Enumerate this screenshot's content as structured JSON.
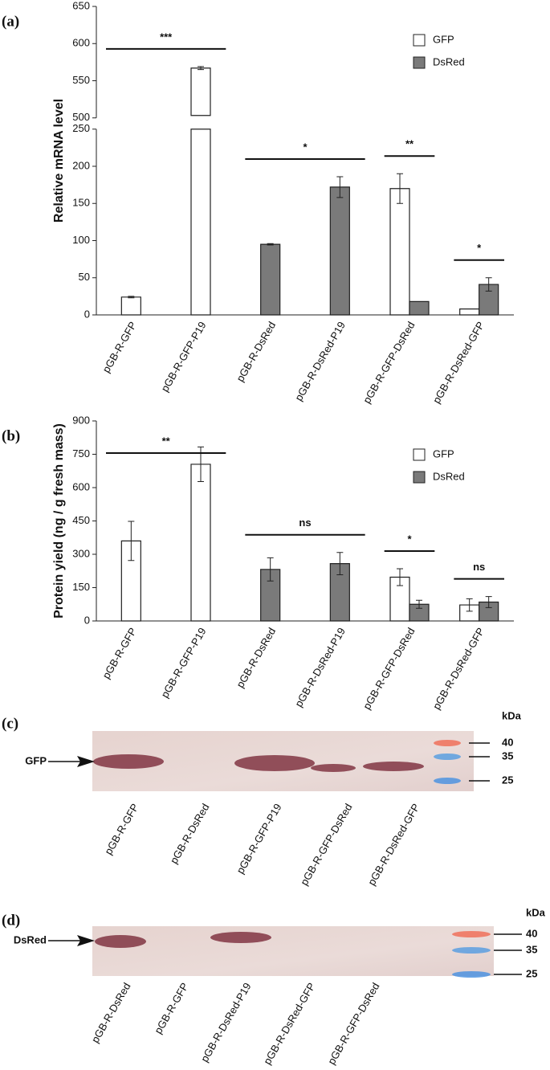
{
  "chart_data": [
    {
      "type": "bar",
      "panel_label": "(a)",
      "y_label": "Relative mRNA level",
      "categories": [
        "pGB-R-GFP",
        "pGB-R-GFP-P19",
        "pGB-R-DsRed",
        "pGB-R-DsRed-P19",
        "pGB-R-GFP-DsRed",
        "pGB-R-DsRed-GFP"
      ],
      "series": [
        {
          "name": "GFP",
          "color": "#ffffff",
          "values": [
            24,
            567,
            null,
            null,
            170,
            8
          ],
          "errors": [
            1,
            2,
            null,
            null,
            20,
            null
          ]
        },
        {
          "name": "DsRed",
          "color": "#7a7a7a",
          "values": [
            null,
            null,
            95,
            172,
            18,
            41
          ],
          "errors": [
            null,
            null,
            1,
            14,
            null,
            9
          ]
        }
      ],
      "ylim": [
        0,
        650
      ],
      "axis_break": [
        250,
        500
      ],
      "yticks": [
        0,
        50,
        100,
        150,
        200,
        250,
        500,
        550,
        600,
        650
      ],
      "legend": "top-right",
      "annotations": [
        {
          "text": "***",
          "span": [
            "pGB-R-GFP",
            "pGB-R-GFP-P19"
          ]
        },
        {
          "text": "*",
          "span": [
            "pGB-R-DsRed",
            "pGB-R-DsRed-P19"
          ]
        },
        {
          "text": "**",
          "span": [
            "pGB-R-GFP-DsRed",
            "pGB-R-GFP-DsRed"
          ]
        },
        {
          "text": "*",
          "span": [
            "pGB-R-DsRed-GFP",
            "pGB-R-DsRed-GFP"
          ]
        }
      ]
    },
    {
      "type": "bar",
      "panel_label": "(b)",
      "y_label": "Protein yield (ng / g fresh mass)",
      "categories": [
        "pGB-R-GFP",
        "pGB-R-GFP-P19",
        "pGB-R-DsRed",
        "pGB-R-DsRed-P19",
        "pGB-R-GFP-DsRed",
        "pGB-R-DsRed-GFP"
      ],
      "series": [
        {
          "name": "GFP",
          "color": "#ffffff",
          "values": [
            360,
            705,
            null,
            null,
            197,
            72
          ],
          "errors": [
            88,
            78,
            null,
            null,
            38,
            28
          ]
        },
        {
          "name": "DsRed",
          "color": "#7a7a7a",
          "values": [
            null,
            null,
            232,
            258,
            75,
            85
          ],
          "errors": [
            null,
            null,
            52,
            50,
            18,
            25
          ]
        }
      ],
      "ylim": [
        0,
        900
      ],
      "yticks": [
        0,
        150,
        300,
        450,
        600,
        750,
        900
      ],
      "legend": "top-right",
      "annotations": [
        {
          "text": "**",
          "span": [
            "pGB-R-GFP",
            "pGB-R-GFP-P19"
          ]
        },
        {
          "text": "ns",
          "span": [
            "pGB-R-DsRed",
            "pGB-R-DsRed-P19"
          ]
        },
        {
          "text": "*",
          "span": [
            "pGB-R-GFP-DsRed",
            "pGB-R-GFP-DsRed"
          ]
        },
        {
          "text": "ns",
          "span": [
            "pGB-R-DsRed-GFP",
            "pGB-R-DsRed-GFP"
          ]
        }
      ]
    }
  ],
  "blots": [
    {
      "panel_label": "(c)",
      "target": "GFP",
      "unit": "kDa",
      "markers": [
        40,
        35,
        25
      ],
      "lanes": [
        "pGB-R-GFP",
        "pGB-R-DsRed",
        "pGB-R-GFP-P19",
        "pGB-R-GFP-DsRed",
        "pGB-R-DsRed-GFP"
      ]
    },
    {
      "panel_label": "(d)",
      "target": "DsRed",
      "unit": "kDa",
      "markers": [
        40,
        35,
        25
      ],
      "lanes": [
        "pGB-R-DsRed",
        "pGB-R-GFP",
        "pGB-R-DsRed-P19",
        "pGB-R-DsRed-GFP",
        "pGB-R-GFP-DsRed"
      ]
    }
  ]
}
